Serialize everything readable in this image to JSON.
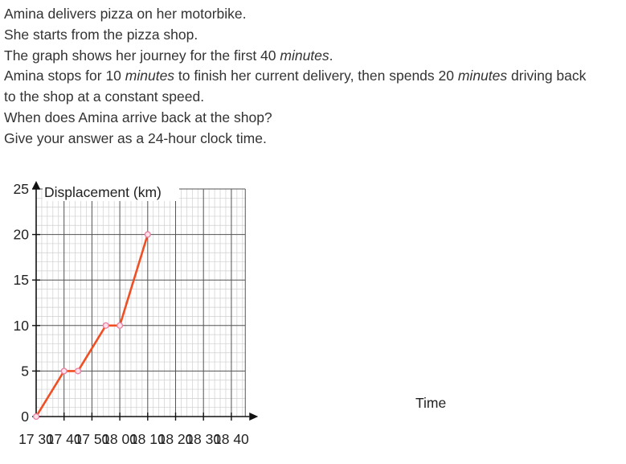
{
  "question": {
    "line1": "Amina delivers pizza on her motorbike.",
    "line2": "She starts from the pizza shop.",
    "line3_a": "The graph shows her journey for the first 40 ",
    "line3_em": "minutes",
    "line3_b": ".",
    "line4_a": "Amina stops for 10 ",
    "line4_em1": "minutes",
    "line4_b": " to finish her current delivery, then spends 20 ",
    "line4_em2": "minutes",
    "line4_c": " driving back",
    "line5": "to the shop at a constant speed.",
    "line6": "When does Amina arrive back at the shop?",
    "line7": "Give your answer as a 24-hour clock time."
  },
  "chart_data": {
    "type": "line",
    "ylabel": "Displacement (km)",
    "xlabel": "Time",
    "x_ticks": [
      "17 30",
      "17 40",
      "17 50",
      "18 00",
      "18 10",
      "18 20",
      "18 30",
      "18 40"
    ],
    "y_ticks": [
      0,
      5,
      10,
      15,
      20,
      25
    ],
    "ylim": [
      0,
      25
    ],
    "xlim_minutes_after_1730": [
      0,
      75
    ],
    "grid": true,
    "series": [
      {
        "x": [
          "17 30",
          "17 40",
          "17 45",
          "17 55",
          "18 00",
          "18 10"
        ],
        "y": [
          0,
          5,
          5,
          10,
          10,
          20
        ],
        "color": "#f04e23",
        "marker_color": "#e87fa0"
      }
    ]
  }
}
